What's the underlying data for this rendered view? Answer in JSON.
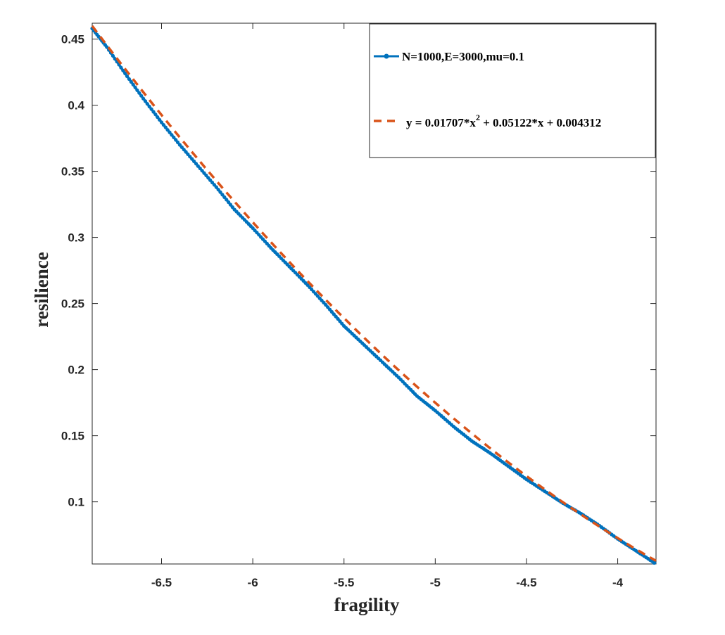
{
  "chart_data": {
    "type": "line",
    "title": "",
    "xlabel": "fragility",
    "ylabel": "resilience",
    "xlim": [
      -6.88,
      -3.79
    ],
    "ylim": [
      0.053,
      0.462
    ],
    "xticks": [
      -6.5,
      -6,
      -5.5,
      -5,
      -4.5,
      -4
    ],
    "xtick_labels": [
      "-6.5",
      "-6",
      "-5.5",
      "-5",
      "-4.5",
      "-4"
    ],
    "yticks": [
      0.1,
      0.15,
      0.2,
      0.25,
      0.3,
      0.35,
      0.4,
      0.45
    ],
    "ytick_labels": [
      "0.1",
      "0.15",
      "0.2",
      "0.25",
      "0.3",
      "0.35",
      "0.4",
      "0.45"
    ],
    "grid": false,
    "legend_position": "top-right",
    "series": [
      {
        "name": "N=1000,E=3000,mu=0.1",
        "style": "solid line with dot markers",
        "color": "#0072BD",
        "x": [
          -6.88,
          -6.8,
          -6.7,
          -6.6,
          -6.5,
          -6.4,
          -6.3,
          -6.2,
          -6.1,
          -6.0,
          -5.9,
          -5.8,
          -5.7,
          -5.6,
          -5.5,
          -5.4,
          -5.3,
          -5.2,
          -5.1,
          -5.0,
          -4.9,
          -4.8,
          -4.7,
          -4.6,
          -4.5,
          -4.4,
          -4.3,
          -4.2,
          -4.1,
          -4.0,
          -3.9,
          -3.8
        ],
        "y": [
          0.458,
          0.444,
          0.424,
          0.405,
          0.387,
          0.37,
          0.354,
          0.338,
          0.321,
          0.307,
          0.292,
          0.278,
          0.264,
          0.249,
          0.233,
          0.22,
          0.207,
          0.194,
          0.18,
          0.169,
          0.157,
          0.146,
          0.137,
          0.127,
          0.117,
          0.108,
          0.099,
          0.091,
          0.082,
          0.072,
          0.063,
          0.054
        ]
      },
      {
        "name": "y = 0.01707*x^2 + 0.05122*x + 0.004312",
        "style": "dashed fit line",
        "color": "#D95319",
        "fit": {
          "a": 0.01707,
          "b": 0.05122,
          "c": 0.004312
        },
        "x_range": [
          -6.88,
          -3.79
        ]
      }
    ]
  },
  "legend": {
    "series1_label": "N=1000,E=3000,mu=0.1",
    "series2_label_prefix": "y = 0.01707*x",
    "series2_label_sup": "2",
    "series2_label_suffix": " + 0.05122*x + 0.004312"
  },
  "colors": {
    "axis": "#262626",
    "series1": "#0072BD",
    "series2": "#D95319"
  }
}
